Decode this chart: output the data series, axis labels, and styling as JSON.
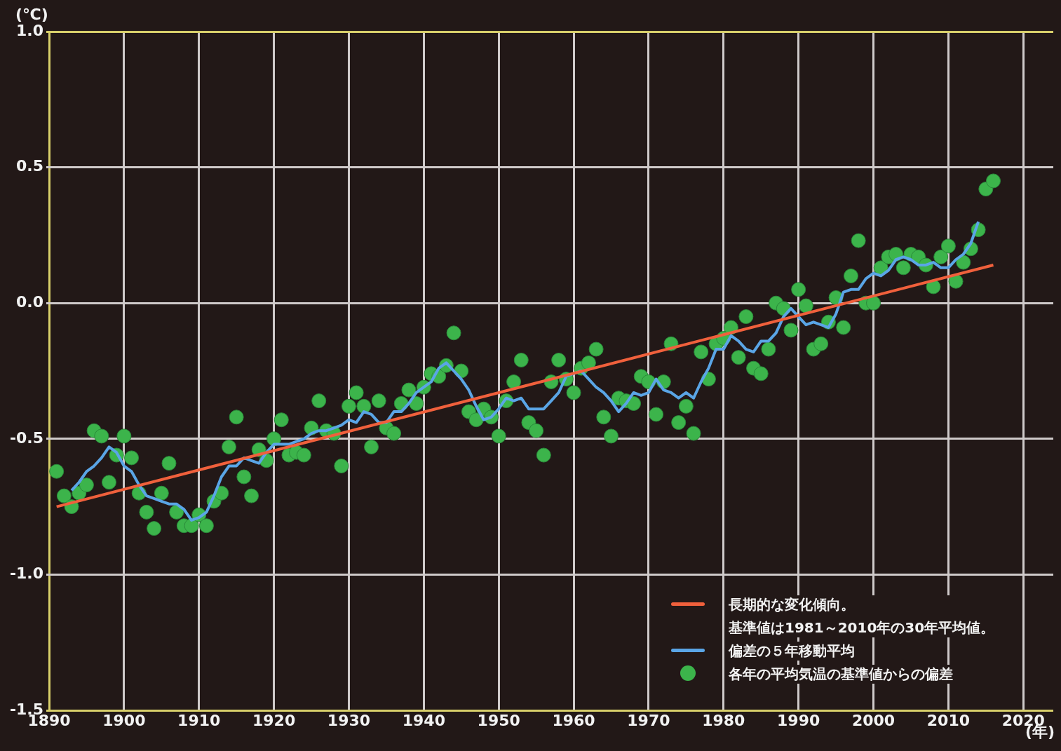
{
  "chart_data": {
    "type": "scatter",
    "xlabel": "(年)",
    "ylabel": "(℃)",
    "xlim": [
      1890,
      2024
    ],
    "xticks": [
      1890,
      1900,
      1910,
      1920,
      1930,
      1940,
      1950,
      1960,
      1970,
      1980,
      1990,
      2000,
      2010,
      2020
    ],
    "ylim": [
      -1.5,
      1.0
    ],
    "yticks": [
      {
        "value": -1.5,
        "label": "-1.5"
      },
      {
        "value": -1.0,
        "label": "-1.0"
      },
      {
        "value": -0.5,
        "label": "-0.5"
      },
      {
        "value": 0,
        "label": "0.0"
      },
      {
        "value": 0.5,
        "label": "0.5"
      },
      {
        "value": 1.0,
        "label": "1.0"
      }
    ],
    "grid": true,
    "legend": "bottom right",
    "line_style": "solid",
    "annotations": [
      "基準値は1981～2010年の30年平均値。"
    ],
    "series": [
      {
        "name": "長期的な変化傾向。",
        "type": "line",
        "color": "#f0603c",
        "x": [
          1891,
          2016
        ],
        "values": [
          -0.75,
          0.14
        ]
      },
      {
        "name": "偏差の５年移動平均",
        "type": "line",
        "color": "#5aa5e6",
        "x": [
          1893,
          1894,
          1895,
          1896,
          1897,
          1898,
          1899,
          1900,
          1901,
          1902,
          1903,
          1904,
          1905,
          1906,
          1907,
          1908,
          1909,
          1910,
          1911,
          1912,
          1913,
          1914,
          1915,
          1916,
          1917,
          1918,
          1919,
          1920,
          1921,
          1922,
          1923,
          1924,
          1925,
          1926,
          1927,
          1928,
          1929,
          1930,
          1931,
          1932,
          1933,
          1934,
          1935,
          1936,
          1937,
          1938,
          1939,
          1940,
          1941,
          1942,
          1943,
          1944,
          1945,
          1946,
          1947,
          1948,
          1949,
          1950,
          1951,
          1952,
          1953,
          1954,
          1955,
          1956,
          1957,
          1958,
          1959,
          1960,
          1961,
          1962,
          1963,
          1964,
          1965,
          1966,
          1967,
          1968,
          1969,
          1970,
          1971,
          1972,
          1973,
          1974,
          1975,
          1976,
          1977,
          1978,
          1979,
          1980,
          1981,
          1982,
          1983,
          1984,
          1985,
          1986,
          1987,
          1988,
          1989,
          1990,
          1991,
          1992,
          1993,
          1994,
          1995,
          1996,
          1997,
          1998,
          1999,
          2000,
          2001,
          2002,
          2003,
          2004,
          2005,
          2006,
          2007,
          2008,
          2009,
          2010,
          2011,
          2012,
          2013,
          2014
        ],
        "values": [
          -0.69,
          -0.66,
          -0.62,
          -0.6,
          -0.57,
          -0.53,
          -0.55,
          -0.6,
          -0.62,
          -0.67,
          -0.71,
          -0.72,
          -0.73,
          -0.74,
          -0.74,
          -0.76,
          -0.8,
          -0.79,
          -0.77,
          -0.71,
          -0.64,
          -0.6,
          -0.6,
          -0.57,
          -0.58,
          -0.59,
          -0.55,
          -0.52,
          -0.52,
          -0.52,
          -0.51,
          -0.5,
          -0.48,
          -0.47,
          -0.47,
          -0.46,
          -0.45,
          -0.43,
          -0.44,
          -0.4,
          -0.41,
          -0.44,
          -0.44,
          -0.4,
          -0.4,
          -0.37,
          -0.33,
          -0.31,
          -0.29,
          -0.24,
          -0.22,
          -0.25,
          -0.28,
          -0.32,
          -0.38,
          -0.43,
          -0.42,
          -0.39,
          -0.35,
          -0.36,
          -0.35,
          -0.39,
          -0.39,
          -0.39,
          -0.36,
          -0.33,
          -0.27,
          -0.26,
          -0.25,
          -0.28,
          -0.31,
          -0.33,
          -0.36,
          -0.4,
          -0.37,
          -0.33,
          -0.34,
          -0.33,
          -0.28,
          -0.32,
          -0.33,
          -0.35,
          -0.33,
          -0.35,
          -0.29,
          -0.24,
          -0.17,
          -0.17,
          -0.12,
          -0.14,
          -0.17,
          -0.18,
          -0.14,
          -0.14,
          -0.11,
          -0.05,
          -0.02,
          -0.05,
          -0.08,
          -0.07,
          -0.08,
          -0.09,
          -0.04,
          0.04,
          0.05,
          0.05,
          0.09,
          0.11,
          0.1,
          0.12,
          0.16,
          0.17,
          0.16,
          0.14,
          0.14,
          0.15,
          0.13,
          0.13,
          0.16,
          0.18,
          0.22,
          0.3
        ]
      },
      {
        "name": "各年の平均気温の基準値からの偏差",
        "type": "scatter",
        "marker": "circle",
        "color": "#3cb44b",
        "x": [
          1891,
          1892,
          1893,
          1894,
          1895,
          1896,
          1897,
          1898,
          1899,
          1900,
          1901,
          1902,
          1903,
          1904,
          1905,
          1906,
          1907,
          1908,
          1909,
          1910,
          1911,
          1912,
          1913,
          1914,
          1915,
          1916,
          1917,
          1918,
          1919,
          1920,
          1921,
          1922,
          1923,
          1924,
          1925,
          1926,
          1927,
          1928,
          1929,
          1930,
          1931,
          1932,
          1933,
          1934,
          1935,
          1936,
          1937,
          1938,
          1939,
          1940,
          1941,
          1942,
          1943,
          1944,
          1945,
          1946,
          1947,
          1948,
          1949,
          1950,
          1951,
          1952,
          1953,
          1954,
          1955,
          1956,
          1957,
          1958,
          1959,
          1960,
          1961,
          1962,
          1963,
          1964,
          1965,
          1966,
          1967,
          1968,
          1969,
          1970,
          1971,
          1972,
          1973,
          1974,
          1975,
          1976,
          1977,
          1978,
          1979,
          1980,
          1981,
          1982,
          1983,
          1984,
          1985,
          1986,
          1987,
          1988,
          1989,
          1990,
          1991,
          1992,
          1993,
          1994,
          1995,
          1996,
          1997,
          1998,
          1999,
          2000,
          2001,
          2002,
          2003,
          2004,
          2005,
          2006,
          2007,
          2008,
          2009,
          2010,
          2011,
          2012,
          2013,
          2014,
          2015,
          2016
        ],
        "values": [
          -0.62,
          -0.71,
          -0.75,
          -0.7,
          -0.67,
          -0.47,
          -0.49,
          -0.66,
          -0.56,
          -0.49,
          -0.57,
          -0.7,
          -0.77,
          -0.83,
          -0.7,
          -0.59,
          -0.77,
          -0.82,
          -0.82,
          -0.78,
          -0.82,
          -0.73,
          -0.7,
          -0.53,
          -0.42,
          -0.64,
          -0.71,
          -0.54,
          -0.58,
          -0.5,
          -0.43,
          -0.56,
          -0.55,
          -0.56,
          -0.46,
          -0.36,
          -0.47,
          -0.48,
          -0.6,
          -0.38,
          -0.33,
          -0.38,
          -0.53,
          -0.36,
          -0.46,
          -0.48,
          -0.37,
          -0.32,
          -0.37,
          -0.31,
          -0.26,
          -0.27,
          -0.23,
          -0.11,
          -0.25,
          -0.4,
          -0.43,
          -0.39,
          -0.42,
          -0.49,
          -0.36,
          -0.29,
          -0.21,
          -0.44,
          -0.47,
          -0.56,
          -0.29,
          -0.21,
          -0.28,
          -0.33,
          -0.24,
          -0.22,
          -0.17,
          -0.42,
          -0.49,
          -0.35,
          -0.36,
          -0.37,
          -0.27,
          -0.29,
          -0.41,
          -0.29,
          -0.15,
          -0.44,
          -0.38,
          -0.48,
          -0.18,
          -0.28,
          -0.15,
          -0.13,
          -0.09,
          -0.2,
          -0.05,
          -0.24,
          -0.26,
          -0.17,
          0.0,
          -0.02,
          -0.1,
          0.05,
          -0.01,
          -0.17,
          -0.15,
          -0.07,
          0.02,
          -0.09,
          0.1,
          0.23,
          0.0,
          0.0,
          0.13,
          0.17,
          0.18,
          0.13,
          0.18,
          0.17,
          0.14,
          0.06,
          0.17,
          0.21,
          0.08,
          0.15,
          0.2,
          0.27,
          0.42,
          0.45
        ]
      }
    ]
  }
}
